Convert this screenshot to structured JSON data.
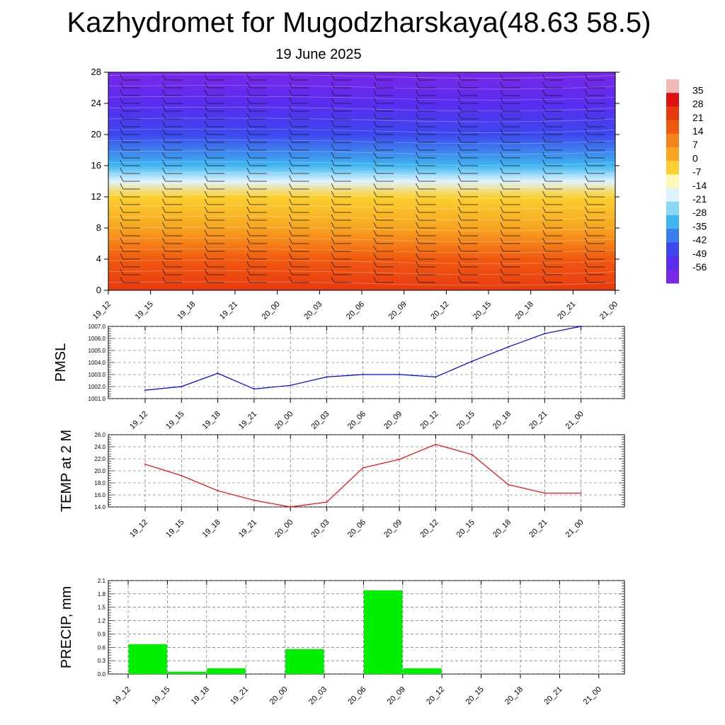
{
  "title": "Kazhydromet for Mugodzharskaya(48.63 58.5)",
  "subtitle": "19 June 2025",
  "colorbar": {
    "labels": [
      "35",
      "28",
      "21",
      "14",
      "7",
      "0",
      "-7",
      "-14",
      "-21",
      "-28",
      "-35",
      "-42",
      "-49",
      "-56"
    ],
    "colors": [
      "#f2b8b8",
      "#e01010",
      "#e83a10",
      "#f05a10",
      "#f5821a",
      "#f8a520",
      "#fbd030",
      "#fff8b8",
      "#dff3ff",
      "#8ad6f5",
      "#3fb6ef",
      "#3a7df0",
      "#3c48ee",
      "#5a2cf0",
      "#7a28e8"
    ]
  },
  "chart_data": [
    {
      "type": "heatmap",
      "name": "vertical-profile",
      "x_categories": [
        "19_12",
        "19_15",
        "19_18",
        "19_21",
        "20_00",
        "20_03",
        "20_06",
        "20_09",
        "20_12",
        "20_15",
        "20_18",
        "20_21",
        "21_00"
      ],
      "ylim": [
        0,
        28
      ],
      "yticks": [
        "0",
        "4",
        "8",
        "12",
        "16",
        "20",
        "24",
        "28"
      ],
      "levels": [
        0,
        4,
        8,
        12,
        14,
        16,
        20,
        24,
        28
      ],
      "temperature_by_level": [
        22,
        14,
        5,
        -2,
        -14,
        -30,
        -42,
        -50,
        -56
      ],
      "colorbar_range": [
        -56,
        35
      ]
    },
    {
      "type": "line",
      "name": "pmsl",
      "ylabel": "PMSL",
      "categories": [
        "19_12",
        "19_15",
        "19_18",
        "19_21",
        "20_00",
        "20_03",
        "20_06",
        "20_09",
        "20_12",
        "20_15",
        "20_18",
        "20_21",
        "21_00"
      ],
      "values": [
        1001.7,
        1002.0,
        1003.1,
        1001.8,
        1002.1,
        1002.8,
        1003.0,
        1003.0,
        1002.8,
        1004.1,
        1005.3,
        1006.4,
        1007.0
      ],
      "ylim": [
        1001.0,
        1007.0
      ],
      "yticks": [
        "1001.0",
        "1002.0",
        "1003.0",
        "1004.0",
        "1005.0",
        "1006.0",
        "1007.0"
      ],
      "color": "#0000ff"
    },
    {
      "type": "line",
      "name": "temp2m",
      "ylabel": "TEMP at 2 M",
      "categories": [
        "19_12",
        "19_15",
        "19_18",
        "19_21",
        "20_00",
        "20_03",
        "20_06",
        "20_09",
        "20_12",
        "20_15",
        "20_18",
        "20_21",
        "21_00"
      ],
      "values": [
        21.1,
        19.2,
        16.7,
        15.1,
        14.0,
        14.8,
        20.5,
        21.9,
        24.4,
        22.7,
        17.7,
        16.3,
        16.3
      ],
      "ylim": [
        14.0,
        26.0
      ],
      "yticks": [
        "14.0",
        "16.0",
        "18.0",
        "20.0",
        "22.0",
        "24.0",
        "26.0"
      ],
      "color": "#ff0000"
    },
    {
      "type": "bar",
      "name": "precip",
      "ylabel": "PRECIP, mm",
      "categories": [
        "19_12",
        "19_15",
        "19_18",
        "19_21",
        "20_00",
        "20_03",
        "20_06",
        "20_09",
        "20_12",
        "20_15",
        "20_18",
        "20_21",
        "21_00"
      ],
      "values": [
        0.0,
        0.67,
        0.05,
        0.13,
        0.0,
        0.56,
        0.0,
        1.88,
        0.13,
        0.0,
        0.0,
        0.0,
        0.0
      ],
      "ylim": [
        0.0,
        2.1
      ],
      "yticks": [
        "0.0",
        "0.3",
        "0.6",
        "0.9",
        "1.2",
        "1.5",
        "1.8",
        "2.1"
      ],
      "color": "#00ee00"
    }
  ]
}
